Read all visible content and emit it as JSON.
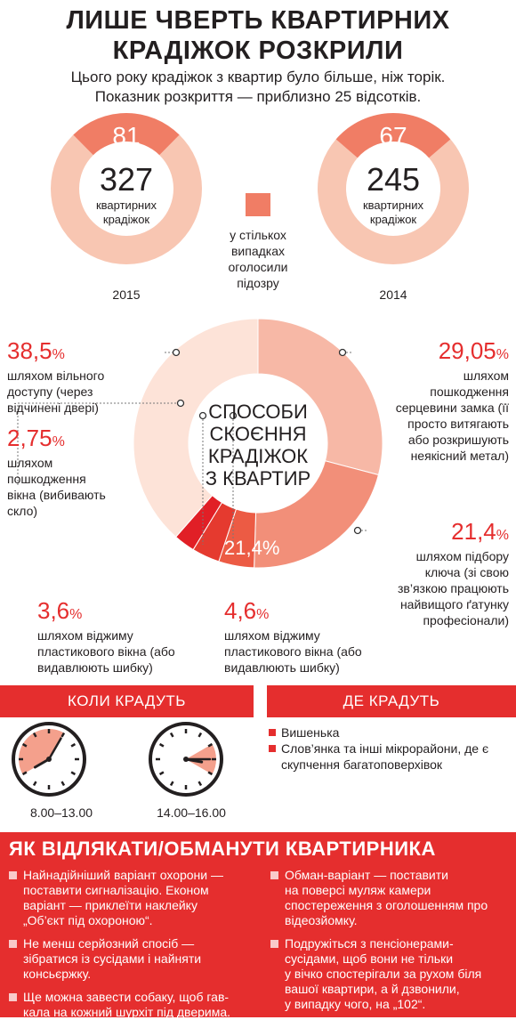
{
  "header": {
    "title_line1": "ЛИШЕ ЧВЕРТЬ КВАРТИРНИХ",
    "title_line2": "КРАДІЖОК РОЗКРИЛИ",
    "subtitle_line1": "Цього року крадіжок з квартир було більше, ніж торік.",
    "subtitle_line2": "Показник розкриття — приблизно 25 відсотків."
  },
  "donuts": {
    "y2015": {
      "total": "327",
      "suspected": "81",
      "label_line1": "квартирних",
      "label_line2": "крадіжок",
      "year": "2015"
    },
    "y2014": {
      "total": "245",
      "suspected": "67",
      "label_line1": "квартирних",
      "label_line2": "крадіжок",
      "year": "2014"
    },
    "legend": {
      "line1": "у стількох",
      "line2": "випадках",
      "line3": "оголосили",
      "line4": "підозру"
    }
  },
  "methods": {
    "center_line1": "СПОСОБИ",
    "center_line2": "СКОЄННЯ",
    "center_line3": "КРАДІЖОК",
    "center_line4": "З КВАРТИР",
    "inner_label": "21,4%",
    "items": [
      {
        "num": "38,5",
        "unit": "%",
        "d1": "шляхом вільного",
        "d2": "доступу (через",
        "d3": "відчинені двері)"
      },
      {
        "num": "2,75",
        "unit": "%",
        "d1": "шляхом",
        "d2": "пошкодження",
        "d3": "вікна (вибивають",
        "d4": "скло)"
      },
      {
        "num": "3,6",
        "unit": "%",
        "d1": "шляхом віджиму",
        "d2": "пластикового вікна (або",
        "d3": "видавлюють шибку)"
      },
      {
        "num": "4,6",
        "unit": "%",
        "d1": "шляхом віджиму",
        "d2": "пластикового вікна (або",
        "d3": "видавлюють шибку)"
      },
      {
        "num": "21,4",
        "unit": "%",
        "d1": "шляхом підбору",
        "d2": "ключа (зі свою",
        "d3": "зв’язкою працюють",
        "d4": "найвищого ґатунку",
        "d5": "професіонали)"
      },
      {
        "num": "29,05",
        "unit": "%",
        "d1": "шляхом",
        "d2": "пошкодження",
        "d3": "серцевини замка (її",
        "d4": "просто витягають",
        "d5": "або розкришують",
        "d6": "неякісний метал)"
      }
    ]
  },
  "when": {
    "header": "КОЛИ КРАДУТЬ",
    "time1": "8.00–13.00",
    "time2": "14.00–16.00"
  },
  "where": {
    "header": "ДЕ КРАДУТЬ",
    "place1": "Вишенька",
    "place2_line1": "Слов’янка та інші мікрорайони, де є",
    "place2_line2": "скупчення багатоповерхівок"
  },
  "tips": {
    "title": "ЯК ВІДЛЯКАТИ/ОБМАНУТИ КВАРТИРНИКА",
    "left": [
      {
        "l1": "Найнадійніший варіант охорони —",
        "l2": "поставити сигналізацію. Економ",
        "l3": "варіант — приклеїти наклейку",
        "l4": "„Об’єкт під охороною“."
      },
      {
        "l1": "Не менш серйозний спосіб —",
        "l2": "зібратися із сусідами і найняти",
        "l3": "консьєржку."
      },
      {
        "l1": "Ще можна завести собаку, щоб гав-",
        "l2": "кала на кожний шурхіт під дверима."
      }
    ],
    "right": [
      {
        "l1": "Обман-варіант — поставити",
        "l2": "на поверсі муляж камери",
        "l3": "спостереження з оголошенням про",
        "l4": "відеозйомку."
      },
      {
        "l1": "Подружіться з пенсіонерами-",
        "l2": "сусідами, щоб вони не тільки",
        "l3": "у вічко спостерігали за рухом біля",
        "l4": "вашої квартири, а й дзвонили,",
        "l5": "у випадку чого, на „102“."
      }
    ]
  },
  "chart_data": [
    {
      "type": "pie",
      "title": "2015",
      "categories": [
        "у стількох випадках оголосили підозру",
        "квартирних крадіжок"
      ],
      "values": [
        81,
        327
      ]
    },
    {
      "type": "pie",
      "title": "2014",
      "categories": [
        "у стількох випадках оголосили підозру",
        "квартирних крадіжок"
      ],
      "values": [
        67,
        245
      ]
    },
    {
      "type": "pie",
      "title": "СПОСОБИ СКОЄННЯ КРАДІЖОК З КВАРТИР",
      "categories": [
        "шляхом пошкодження серцевини замка",
        "шляхом підбору ключа",
        "шляхом віджиму пластикового вікна (4,6%)",
        "шляхом віджиму пластикового вікна (3,6%)",
        "шляхом пошкодження вікна",
        "шляхом вільного доступу"
      ],
      "values": [
        29.05,
        21.4,
        4.6,
        3.6,
        2.75,
        38.5
      ]
    }
  ],
  "colors": {
    "accent": "#e52e2e",
    "salmon": "#f07d65",
    "peach": "#f8c6b2",
    "light": "#fde3d8"
  }
}
